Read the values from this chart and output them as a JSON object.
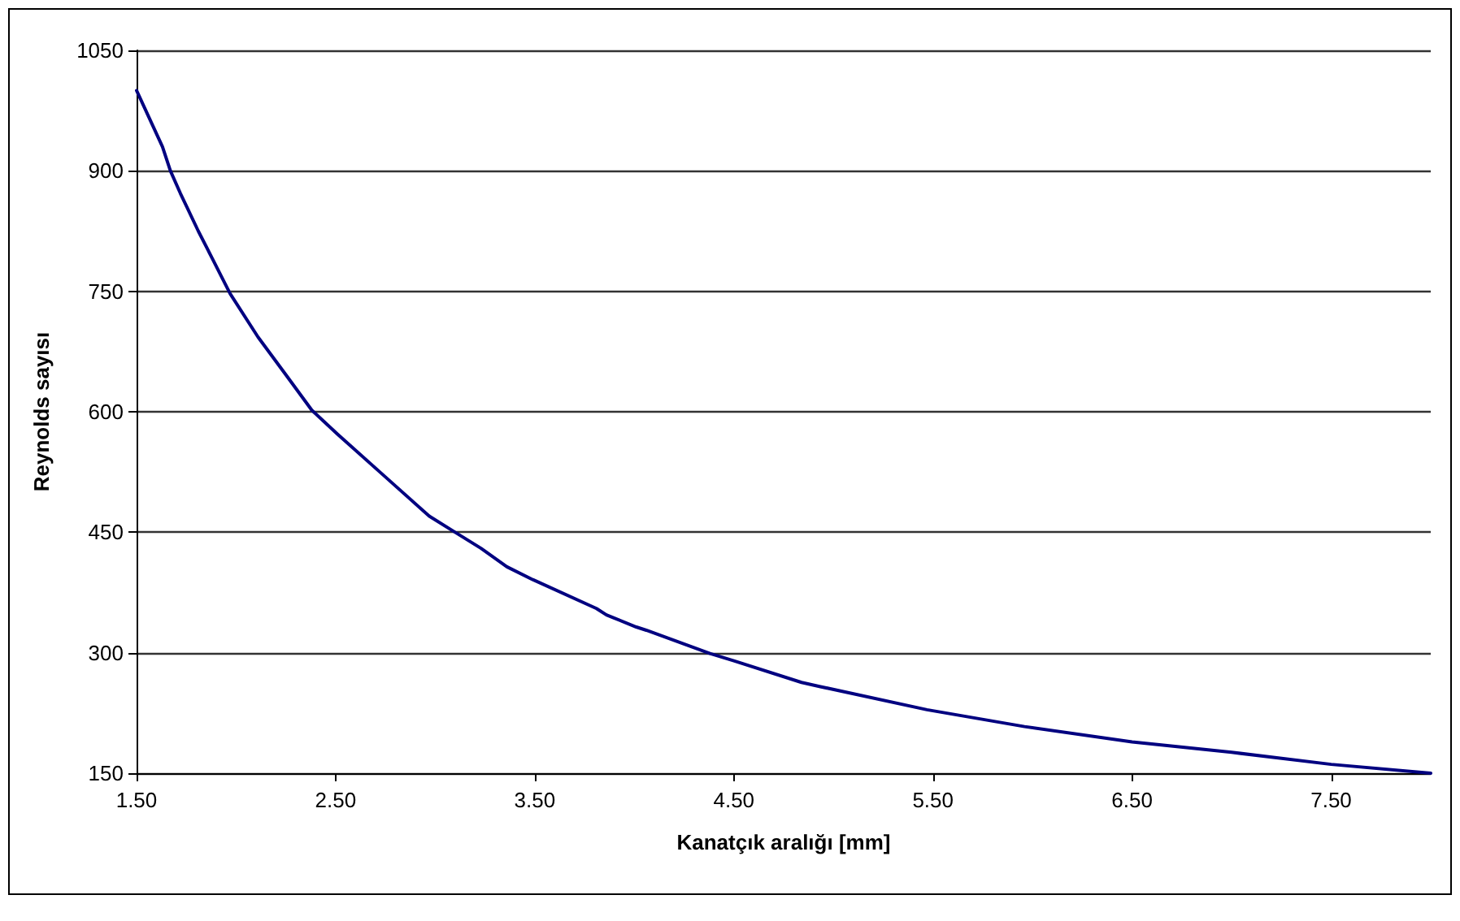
{
  "chart_data": {
    "type": "line",
    "xlabel": "Kanatçık aralığı [mm]",
    "ylabel": "Reynolds sayısı",
    "x": [
      1.5,
      1.63,
      1.67,
      1.72,
      1.81,
      1.88,
      1.97,
      2.11,
      2.25,
      2.38,
      2.51,
      2.74,
      2.97,
      3.1,
      3.23,
      3.36,
      3.49,
      3.81,
      3.86,
      4.01,
      4.06,
      4.38,
      4.5,
      4.84,
      4.93,
      5.47,
      5.96,
      6.5,
      7.0,
      7.5,
      8.0
    ],
    "series": [
      {
        "color": "#000080",
        "values": [
          1000,
          930,
          900,
          872,
          825,
          791,
          747,
          693,
          646,
          602,
          572,
          521,
          470,
          450,
          430,
          407,
          391,
          355,
          347,
          332,
          328,
          299,
          290,
          263,
          258,
          229,
          208,
          189,
          176,
          161,
          150
        ]
      }
    ],
    "xlim": [
      1.5,
      8.0
    ],
    "xticks": [
      {
        "value": 1.5,
        "label": "1.50"
      },
      {
        "value": 2.5,
        "label": "2.50"
      },
      {
        "value": 3.5,
        "label": "3.50"
      },
      {
        "value": 4.5,
        "label": "4.50"
      },
      {
        "value": 5.5,
        "label": "5.50"
      },
      {
        "value": 6.5,
        "label": "6.50"
      },
      {
        "value": 7.5,
        "label": "7.50"
      }
    ],
    "ylim": [
      150,
      1050
    ],
    "yticks": [
      150,
      300,
      450,
      600,
      750,
      900,
      1050
    ],
    "grid": "y",
    "marker": "none",
    "line_style": "solid"
  }
}
